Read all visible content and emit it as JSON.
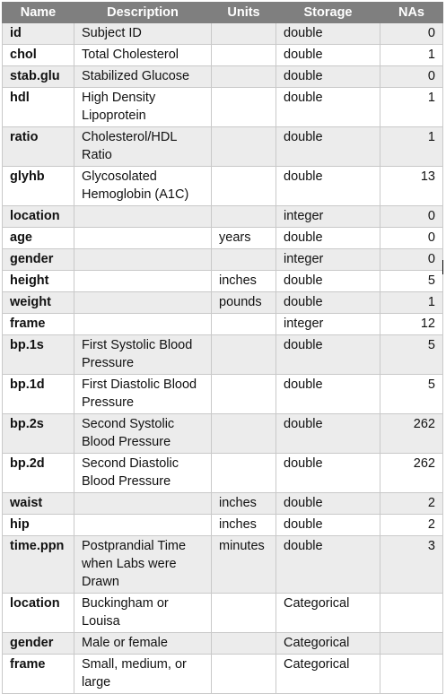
{
  "table": {
    "headers": [
      "Name",
      "Description",
      "Units",
      "Storage",
      "NAs"
    ],
    "rows": [
      {
        "name": "id",
        "description": "Subject ID",
        "units": "",
        "storage": "double",
        "nas": "0"
      },
      {
        "name": "chol",
        "description": "Total Cholesterol",
        "units": "",
        "storage": "double",
        "nas": "1"
      },
      {
        "name": "stab.glu",
        "description": "Stabilized Glucose",
        "units": "",
        "storage": "double",
        "nas": "0"
      },
      {
        "name": "hdl",
        "description": "High Density Lipoprotein",
        "units": "",
        "storage": "double",
        "nas": "1"
      },
      {
        "name": "ratio",
        "description": "Cholesterol/HDL Ratio",
        "units": "",
        "storage": "double",
        "nas": "1"
      },
      {
        "name": "glyhb",
        "description": "Glycosolated Hemoglobin (A1C)",
        "units": "",
        "storage": "double",
        "nas": "13"
      },
      {
        "name": "location",
        "description": "",
        "units": "",
        "storage": "integer",
        "nas": "0"
      },
      {
        "name": "age",
        "description": "",
        "units": "years",
        "storage": "double",
        "nas": "0"
      },
      {
        "name": "gender",
        "description": "",
        "units": "",
        "storage": "integer",
        "nas": "0"
      },
      {
        "name": "height",
        "description": "",
        "units": "inches",
        "storage": "double",
        "nas": "5"
      },
      {
        "name": "weight",
        "description": "",
        "units": "pounds",
        "storage": "double",
        "nas": "1"
      },
      {
        "name": "frame",
        "description": "",
        "units": "",
        "storage": "integer",
        "nas": "12"
      },
      {
        "name": "bp.1s",
        "description": "First Systolic Blood Pressure",
        "units": "",
        "storage": "double",
        "nas": "5"
      },
      {
        "name": "bp.1d",
        "description": "First Diastolic Blood Pressure",
        "units": "",
        "storage": "double",
        "nas": "5"
      },
      {
        "name": "bp.2s",
        "description": "Second Systolic Blood Pressure",
        "units": "",
        "storage": "double",
        "nas": "262"
      },
      {
        "name": "bp.2d",
        "description": "Second Diastolic Blood Pressure",
        "units": "",
        "storage": "double",
        "nas": "262"
      },
      {
        "name": "waist",
        "description": "",
        "units": "inches",
        "storage": "double",
        "nas": "2"
      },
      {
        "name": "hip",
        "description": "",
        "units": "inches",
        "storage": "double",
        "nas": "2"
      },
      {
        "name": "time.ppn",
        "description": "Postprandial Time when Labs were Drawn",
        "units": "minutes",
        "storage": "double",
        "nas": "3"
      },
      {
        "name": "location",
        "description": "Buckingham or Louisa",
        "units": "",
        "storage": "Categorical",
        "nas": ""
      },
      {
        "name": "gender",
        "description": "Male or female",
        "units": "",
        "storage": "Categorical",
        "nas": ""
      },
      {
        "name": "frame",
        "description": "Small, medium, or large",
        "units": "",
        "storage": "Categorical",
        "nas": ""
      }
    ]
  }
}
